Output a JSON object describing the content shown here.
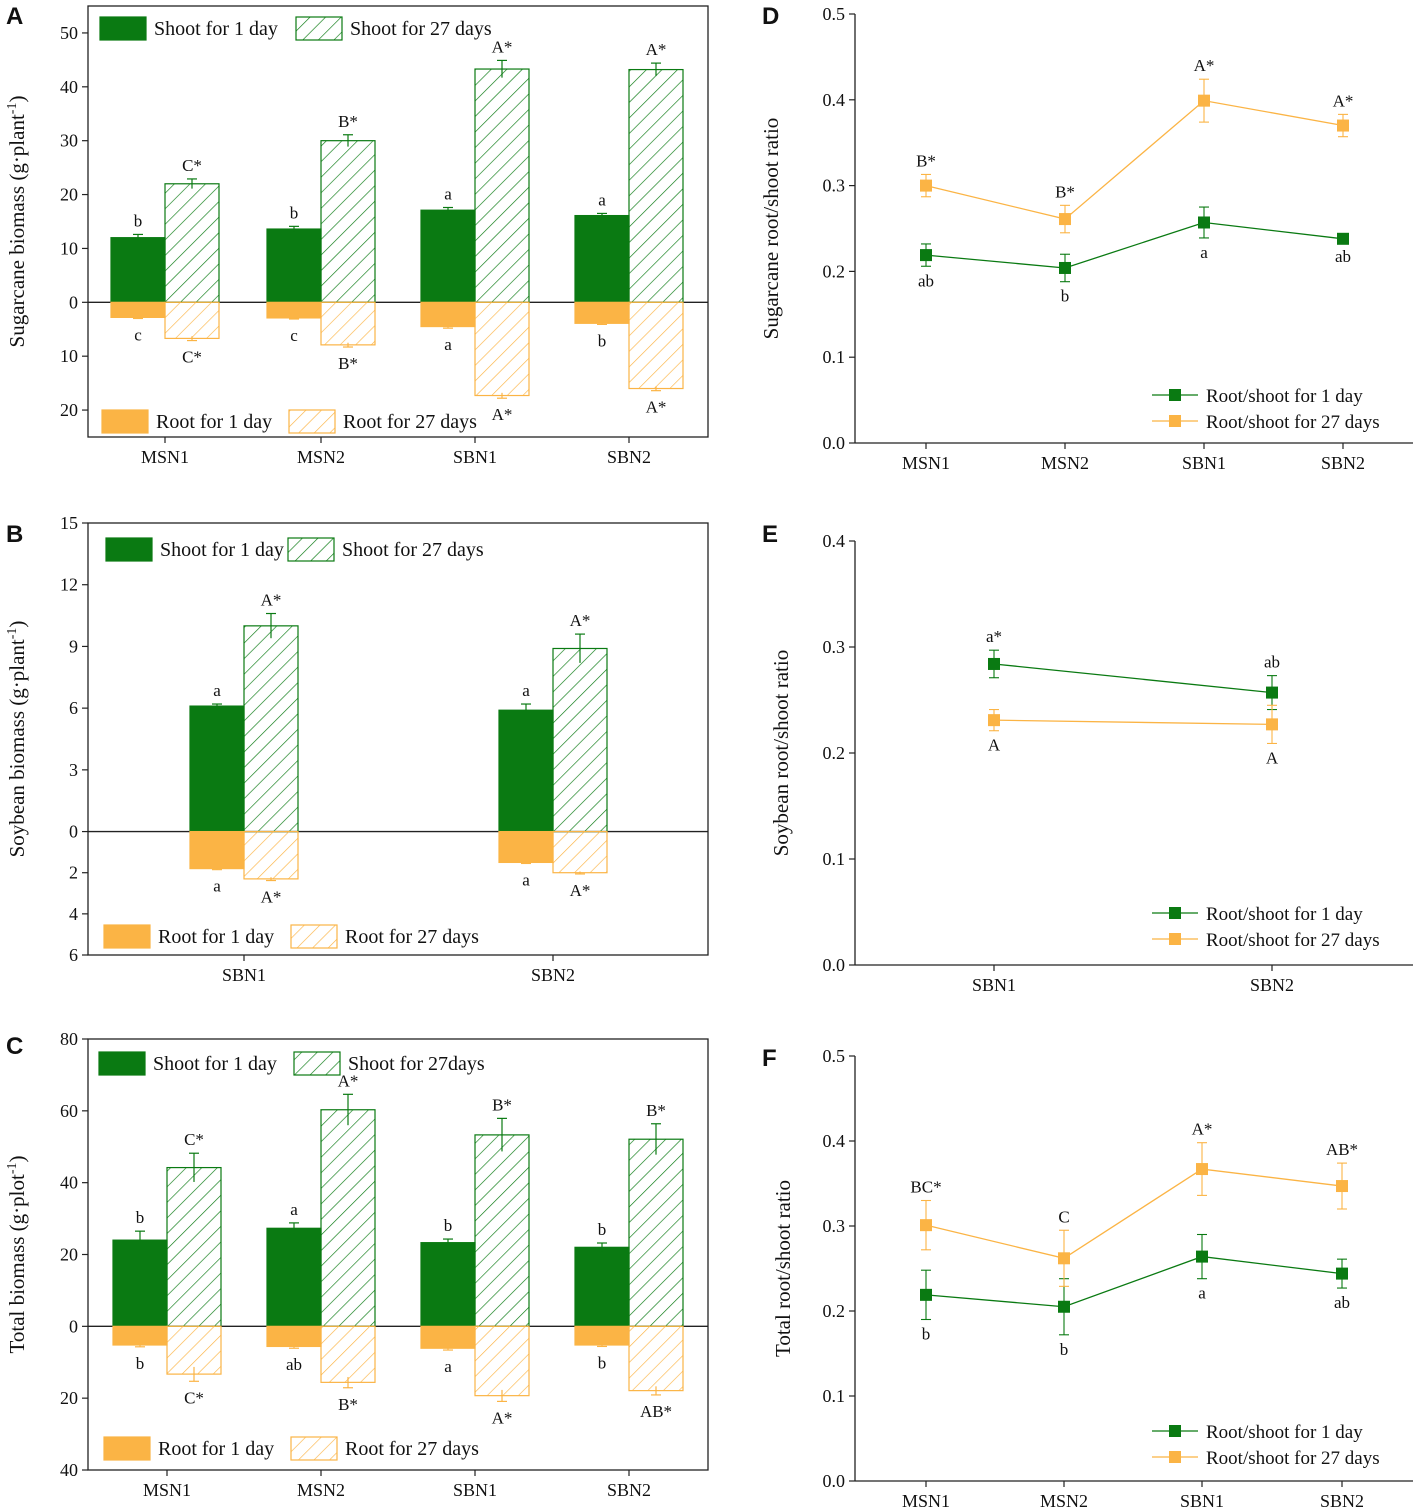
{
  "colors": {
    "green": "#0a7a12",
    "orange": "#fbb445",
    "axis": "#222222"
  },
  "chart_data": [
    {
      "panel": "A",
      "type": "bar",
      "ylabel": "Sugarcane biomass (g·plant",
      "ylabel_sup": "-1",
      "ylabel_close": ")",
      "categories": [
        "MSN1",
        "MSN2",
        "SBN1",
        "SBN2"
      ],
      "ylim": [
        -25,
        55
      ],
      "y_ticks": [
        {
          "v": 50,
          "label": "50"
        },
        {
          "v": 40,
          "label": "40"
        },
        {
          "v": 30,
          "label": "30"
        },
        {
          "v": 20,
          "label": "20"
        },
        {
          "v": 10,
          "label": "10"
        },
        {
          "v": 0,
          "label": "0"
        },
        {
          "v": -10,
          "label": "10"
        },
        {
          "v": -20,
          "label": "20"
        }
      ],
      "series": [
        {
          "name": "Shoot for 1 day",
          "style": "solid-green",
          "values": [
            12.0,
            13.6,
            17.1,
            16.1
          ],
          "errors": [
            0.6,
            0.5,
            0.5,
            0.4
          ],
          "letters": [
            "b",
            "b",
            "a",
            "a"
          ]
        },
        {
          "name": "Shoot for 27 days",
          "style": "hatch-green",
          "values": [
            22.0,
            30.0,
            43.3,
            43.2
          ],
          "errors": [
            0.9,
            1.1,
            1.6,
            1.2
          ],
          "letters": [
            "C*",
            "B*",
            "A*",
            "A*"
          ]
        },
        {
          "name": "Root for 1 day",
          "style": "solid-orange",
          "values": [
            -2.8,
            -2.9,
            -4.5,
            -3.9
          ],
          "errors": [
            0.2,
            0.2,
            0.3,
            0.2
          ],
          "letters": [
            "c",
            "c",
            "a",
            "b"
          ]
        },
        {
          "name": "Root for 27 days",
          "style": "hatch-orange",
          "values": [
            -6.7,
            -7.9,
            -17.3,
            -16.0
          ],
          "errors": [
            0.4,
            0.4,
            0.5,
            0.4
          ],
          "letters": [
            "C*",
            "B*",
            "A*",
            "A*"
          ]
        }
      ],
      "legend_top": [
        "Shoot for 1 day",
        "Shoot for 27 days"
      ],
      "legend_bottom": [
        "Root for 1 day",
        "Root for 27 days"
      ]
    },
    {
      "panel": "B",
      "type": "bar",
      "ylabel": "Soybean biomass (g·plant",
      "ylabel_sup": "-1",
      "ylabel_close": ")",
      "categories": [
        "SBN1",
        "SBN2"
      ],
      "ylim": [
        -6,
        15
      ],
      "y_ticks": [
        {
          "v": 15,
          "label": "15"
        },
        {
          "v": 12,
          "label": "12"
        },
        {
          "v": 9,
          "label": "9"
        },
        {
          "v": 6,
          "label": "6"
        },
        {
          "v": 3,
          "label": "3"
        },
        {
          "v": 0,
          "label": "0"
        },
        {
          "v": -2,
          "label": "2"
        },
        {
          "v": -4,
          "label": "4"
        },
        {
          "v": -6,
          "label": "6"
        }
      ],
      "series": [
        {
          "name": "Shoot for 1 day",
          "style": "solid-green",
          "values": [
            6.1,
            5.9
          ],
          "errors": [
            0.1,
            0.3
          ],
          "letters": [
            "a",
            "a"
          ]
        },
        {
          "name": "Shoot for 27 days",
          "style": "hatch-green",
          "values": [
            10.0,
            8.9
          ],
          "errors": [
            0.6,
            0.7
          ],
          "letters": [
            "A*",
            "A*"
          ]
        },
        {
          "name": "Root for 1 day",
          "style": "solid-orange",
          "values": [
            -1.8,
            -1.5
          ],
          "errors": [
            0.05,
            0.05
          ],
          "letters": [
            "a",
            "a"
          ]
        },
        {
          "name": "Root for 27 days",
          "style": "hatch-orange",
          "values": [
            -2.3,
            -2.0
          ],
          "errors": [
            0.08,
            0.06
          ],
          "letters": [
            "A*",
            "A*"
          ]
        }
      ],
      "legend_top": [
        "Shoot for 1 day",
        "Shoot for 27 days"
      ],
      "legend_bottom": [
        "Root for 1 day",
        "Root for 27 days"
      ]
    },
    {
      "panel": "C",
      "type": "bar",
      "ylabel": "Total biomass (g·plot",
      "ylabel_sup": "-1",
      "ylabel_close": ")",
      "categories": [
        "MSN1",
        "MSN2",
        "SBN1",
        "SBN2"
      ],
      "ylim": [
        -40,
        80
      ],
      "y_ticks": [
        {
          "v": 80,
          "label": "80"
        },
        {
          "v": 60,
          "label": "60"
        },
        {
          "v": 40,
          "label": "40"
        },
        {
          "v": 20,
          "label": "20"
        },
        {
          "v": 0,
          "label": "0"
        },
        {
          "v": -20,
          "label": "20"
        },
        {
          "v": -40,
          "label": "40"
        }
      ],
      "series": [
        {
          "name": "Shoot for 1 day",
          "style": "solid-green",
          "values": [
            24.0,
            27.3,
            23.3,
            22.0
          ],
          "errors": [
            2.5,
            1.5,
            1.0,
            1.2
          ],
          "letters": [
            "b",
            "a",
            "b",
            "b"
          ]
        },
        {
          "name": "Shoot for 27days",
          "style": "hatch-green",
          "values": [
            44.2,
            60.3,
            53.3,
            52.1
          ],
          "errors": [
            4.0,
            4.3,
            4.6,
            4.3
          ],
          "letters": [
            "C*",
            "A*",
            "B*",
            "B*"
          ]
        },
        {
          "name": "Root for 1 day",
          "style": "solid-orange",
          "values": [
            -5.2,
            -5.6,
            -6.1,
            -5.2
          ],
          "errors": [
            0.5,
            0.5,
            0.5,
            0.4
          ],
          "letters": [
            "b",
            "ab",
            "a",
            "b"
          ]
        },
        {
          "name": "Root for 27 days",
          "style": "hatch-orange",
          "values": [
            -13.3,
            -15.6,
            -19.3,
            -17.9
          ],
          "errors": [
            2.0,
            1.5,
            1.6,
            1.2
          ],
          "letters": [
            "C*",
            "B*",
            "A*",
            "AB*"
          ]
        }
      ],
      "legend_top": [
        "Shoot for 1 day",
        "Shoot for 27days"
      ],
      "legend_bottom": [
        "Root for 1 day",
        "Root for 27 days"
      ]
    },
    {
      "panel": "D",
      "type": "line",
      "ylabel": "Sugarcane root/shoot ratio",
      "categories": [
        "MSN1",
        "MSN2",
        "SBN1",
        "SBN2"
      ],
      "ylim": [
        0,
        0.5
      ],
      "y_ticks": [
        {
          "v": 0.5,
          "label": "0.5"
        },
        {
          "v": 0.4,
          "label": "0.4"
        },
        {
          "v": 0.3,
          "label": "0.3"
        },
        {
          "v": 0.2,
          "label": "0.2"
        },
        {
          "v": 0.1,
          "label": "0.1"
        },
        {
          "v": 0.0,
          "label": "0.0"
        }
      ],
      "series": [
        {
          "name": "Root/shoot for 1 day",
          "color": "green",
          "values": [
            0.219,
            0.204,
            0.257,
            0.238
          ],
          "errors": [
            0.013,
            0.016,
            0.018,
            0.004
          ],
          "letters": [
            "ab",
            "b",
            "a",
            "ab"
          ],
          "letter_pos": "below"
        },
        {
          "name": "Root/shoot for 27 days",
          "color": "orange",
          "values": [
            0.3,
            0.261,
            0.399,
            0.37
          ],
          "errors": [
            0.013,
            0.016,
            0.025,
            0.013
          ],
          "letters": [
            "B*",
            "B*",
            "A*",
            "A*"
          ],
          "letter_pos": "above"
        }
      ]
    },
    {
      "panel": "E",
      "type": "line",
      "ylabel": "Soybean root/shoot ratio",
      "categories": [
        "SBN1",
        "SBN2"
      ],
      "ylim": [
        0,
        0.4
      ],
      "y_ticks": [
        {
          "v": 0.4,
          "label": "0.4"
        },
        {
          "v": 0.3,
          "label": "0.3"
        },
        {
          "v": 0.2,
          "label": "0.2"
        },
        {
          "v": 0.1,
          "label": "0.1"
        },
        {
          "v": 0.0,
          "label": "0.0"
        }
      ],
      "series": [
        {
          "name": "Root/shoot for 1 day",
          "color": "green",
          "values": [
            0.284,
            0.257
          ],
          "errors": [
            0.013,
            0.016
          ],
          "letters": [
            "a*",
            "ab"
          ],
          "letter_pos": "above"
        },
        {
          "name": "Root/shoot for 27 days",
          "color": "orange",
          "values": [
            0.231,
            0.227
          ],
          "errors": [
            0.01,
            0.018
          ],
          "letters": [
            "A",
            "A"
          ],
          "letter_pos": "below"
        }
      ]
    },
    {
      "panel": "F",
      "type": "line",
      "ylabel": "Total root/shoot ratio",
      "categories": [
        "MSN1",
        "MSN2",
        "SBN1",
        "SBN2"
      ],
      "ylim": [
        0,
        0.5
      ],
      "y_ticks": [
        {
          "v": 0.5,
          "label": "0.5"
        },
        {
          "v": 0.4,
          "label": "0.4"
        },
        {
          "v": 0.3,
          "label": "0.3"
        },
        {
          "v": 0.2,
          "label": "0.2"
        },
        {
          "v": 0.1,
          "label": "0.1"
        },
        {
          "v": 0.0,
          "label": "0.0"
        }
      ],
      "series": [
        {
          "name": "Root/shoot for 1 day",
          "color": "green",
          "values": [
            0.219,
            0.205,
            0.264,
            0.244
          ],
          "errors": [
            0.029,
            0.033,
            0.026,
            0.017
          ],
          "letters": [
            "b",
            "b",
            "a",
            "ab"
          ],
          "letter_pos": "below"
        },
        {
          "name": "Root/shoot for 27 days",
          "color": "orange",
          "values": [
            0.301,
            0.262,
            0.367,
            0.347
          ],
          "errors": [
            0.029,
            0.033,
            0.031,
            0.027
          ],
          "letters": [
            "BC*",
            "C",
            "A*",
            "AB*"
          ],
          "letter_pos": "above"
        }
      ]
    }
  ]
}
